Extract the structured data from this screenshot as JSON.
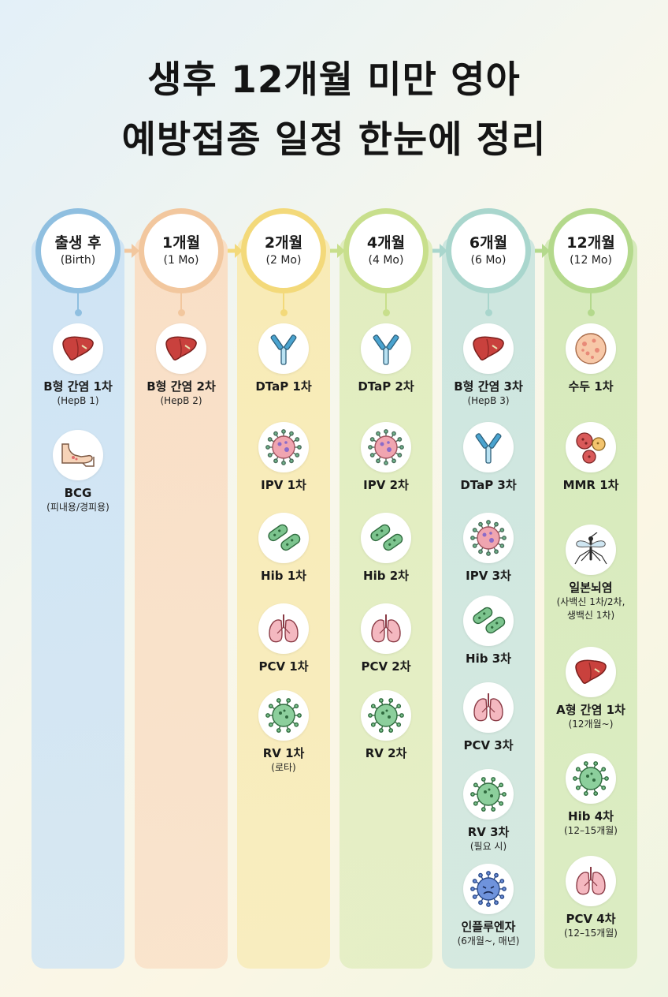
{
  "title": {
    "line1": "생후 12개월 미만 영아",
    "line2": "예방접종 일정 한눈에 정리"
  },
  "stages": [
    {
      "label": "출생 후",
      "sub": "(Birth)",
      "color": "#8fbfe0",
      "bg": "#cfe4f4",
      "items": [
        {
          "icon": "liver-icon",
          "name": "B형 간염 1차",
          "sub": "(HepB 1)"
        },
        {
          "icon": "arm-icon",
          "name": "BCG",
          "sub": "(피내용/경피용)"
        }
      ]
    },
    {
      "label": "1개월",
      "sub": "(1 Mo)",
      "color": "#f2c79e",
      "bg": "#f9dfc6",
      "items": [
        {
          "icon": "liver-icon",
          "name": "B형 간염 2차",
          "sub": "(HepB 2)"
        }
      ]
    },
    {
      "label": "2개월",
      "sub": "(2 Mo)",
      "color": "#f3d97a",
      "bg": "#f8ebb6",
      "items": [
        {
          "icon": "antibody-icon",
          "name": "DTaP 1차",
          "sub": ""
        },
        {
          "icon": "virus-icon",
          "name": "IPV 1차",
          "sub": ""
        },
        {
          "icon": "bacteria-icon",
          "name": "Hib 1차",
          "sub": ""
        },
        {
          "icon": "lungs-icon",
          "name": "PCV 1차",
          "sub": ""
        },
        {
          "icon": "rotavirus-icon",
          "name": "RV 1차",
          "sub": "(로타)"
        }
      ]
    },
    {
      "label": "4개월",
      "sub": "(4 Mo)",
      "color": "#c8df8c",
      "bg": "#e1edbf",
      "items": [
        {
          "icon": "antibody-icon",
          "name": "DTaP 2차",
          "sub": ""
        },
        {
          "icon": "virus-icon",
          "name": "IPV 2차",
          "sub": ""
        },
        {
          "icon": "bacteria-icon",
          "name": "Hib 2차",
          "sub": ""
        },
        {
          "icon": "lungs-icon",
          "name": "PCV 2차",
          "sub": ""
        },
        {
          "icon": "rotavirus-icon",
          "name": "RV 2차",
          "sub": ""
        }
      ]
    },
    {
      "label": "6개월",
      "sub": "(6 Mo)",
      "color": "#a9d6cd",
      "bg": "#cde6df",
      "items": [
        {
          "icon": "liver-icon",
          "name": "B형 간염 3차",
          "sub": "(HepB 3)"
        },
        {
          "icon": "antibody-icon",
          "name": "DTaP 3차",
          "sub": ""
        },
        {
          "icon": "virus-icon",
          "name": "IPV 3차",
          "sub": ""
        },
        {
          "icon": "bacteria-icon",
          "name": "Hib 3차",
          "sub": ""
        },
        {
          "icon": "lungs-icon",
          "name": "PCV 3차",
          "sub": ""
        },
        {
          "icon": "rotavirus-icon",
          "name": "RV 3차",
          "sub": "(필요 시)"
        },
        {
          "icon": "flu-virus-icon",
          "name": "인플루엔자",
          "sub": "(6개월~, 매년)"
        }
      ]
    },
    {
      "label": "12개월",
      "sub": "(12 Mo)",
      "color": "#b4d98c",
      "bg": "#d6eabb",
      "items": [
        {
          "icon": "varicella-icon",
          "name": "수두 1차",
          "sub": ""
        },
        {
          "icon": "measles-icon",
          "name": "MMR 1차",
          "sub": ""
        },
        {
          "icon": "mosquito-icon",
          "name": "일본뇌염",
          "sub": "(사백신 1차/2차,",
          "sub2": "생백신 1차)"
        },
        {
          "icon": "liver-icon",
          "name": "A형 간염 1차",
          "sub": "(12개월~)"
        },
        {
          "icon": "rotavirus-icon",
          "name": "Hib 4차",
          "sub": "(12–15개월)"
        },
        {
          "icon": "lungs-icon",
          "name": "PCV 4차",
          "sub": "(12–15개월)"
        }
      ]
    }
  ]
}
